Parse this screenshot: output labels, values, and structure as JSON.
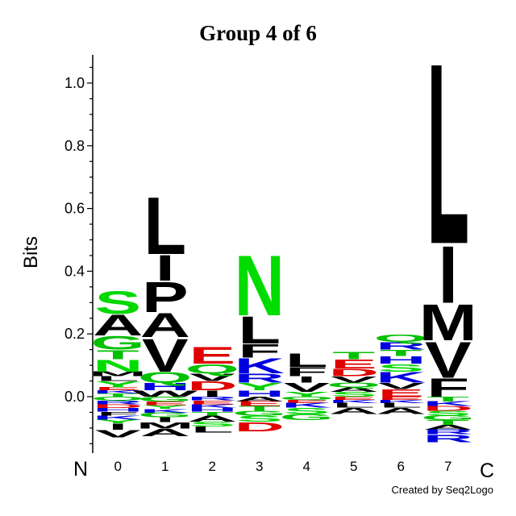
{
  "chart_data": {
    "type": "sequence-logo",
    "title": "Group 4 of 6",
    "ylabel": "Bits",
    "ylim": [
      -0.18,
      1.09
    ],
    "yticks": [
      0.0,
      0.2,
      0.4,
      0.6,
      0.8,
      1.0
    ],
    "ytick_labels": [
      "0.0",
      "0.2",
      "0.4",
      "0.6",
      "0.8",
      "1.0"
    ],
    "n_terminus_label": "N",
    "c_terminus_label": "C",
    "positions": [
      "0",
      "1",
      "2",
      "3",
      "4",
      "5",
      "6",
      "7"
    ],
    "columns": [
      {
        "position": "0",
        "positive": [
          {
            "letter": "T",
            "bits": 0.01
          },
          {
            "letter": "K",
            "bits": 0.01
          },
          {
            "letter": "E",
            "bits": 0.01
          },
          {
            "letter": "Y",
            "bits": 0.02
          },
          {
            "letter": "L",
            "bits": 0.015
          },
          {
            "letter": "M",
            "bits": 0.015
          },
          {
            "letter": "N",
            "bits": 0.04
          },
          {
            "letter": "T",
            "bits": 0.03
          },
          {
            "letter": "G",
            "bits": 0.045
          },
          {
            "letter": "A",
            "bits": 0.07
          },
          {
            "letter": "S",
            "bits": 0.075
          }
        ],
        "negative": [
          {
            "letter": "Q",
            "bits": 0.012
          },
          {
            "letter": "R",
            "bits": 0.012
          },
          {
            "letter": "D",
            "bits": 0.012
          },
          {
            "letter": "H",
            "bits": 0.012
          },
          {
            "letter": "F",
            "bits": 0.012
          },
          {
            "letter": "K",
            "bits": 0.013
          },
          {
            "letter": "Y",
            "bits": 0.012
          },
          {
            "letter": "I",
            "bits": 0.02
          },
          {
            "letter": "V",
            "bits": 0.025
          }
        ]
      },
      {
        "position": "1",
        "positive": [
          {
            "letter": "W",
            "bits": 0.02
          },
          {
            "letter": "H",
            "bits": 0.025
          },
          {
            "letter": "Q",
            "bits": 0.035
          },
          {
            "letter": "V",
            "bits": 0.11
          },
          {
            "letter": "A",
            "bits": 0.08
          },
          {
            "letter": "P",
            "bits": 0.1
          },
          {
            "letter": "I",
            "bits": 0.085
          },
          {
            "letter": "L",
            "bits": 0.19
          }
        ],
        "negative": [
          {
            "letter": "G",
            "bits": 0.015
          },
          {
            "letter": "E",
            "bits": 0.012
          },
          {
            "letter": "Y",
            "bits": 0.012
          },
          {
            "letter": "K",
            "bits": 0.012
          },
          {
            "letter": "G",
            "bits": 0.015
          },
          {
            "letter": "I",
            "bits": 0.015
          },
          {
            "letter": "M",
            "bits": 0.02
          },
          {
            "letter": "A",
            "bits": 0.025
          }
        ]
      },
      {
        "position": "2",
        "positive": [
          {
            "letter": "I",
            "bits": 0.02
          },
          {
            "letter": "D",
            "bits": 0.03
          },
          {
            "letter": "V",
            "bits": 0.025
          },
          {
            "letter": "Q",
            "bits": 0.03
          },
          {
            "letter": "E",
            "bits": 0.055
          }
        ],
        "negative": [
          {
            "letter": "R",
            "bits": 0.012
          },
          {
            "letter": "E",
            "bits": 0.012
          },
          {
            "letter": "K",
            "bits": 0.012
          },
          {
            "letter": "H",
            "bits": 0.012
          },
          {
            "letter": "T",
            "bits": 0.012
          },
          {
            "letter": "A",
            "bits": 0.02
          },
          {
            "letter": "S",
            "bits": 0.015
          },
          {
            "letter": "L",
            "bits": 0.02
          }
        ]
      },
      {
        "position": "3",
        "positive": [
          {
            "letter": "H",
            "bits": 0.02
          },
          {
            "letter": "Y",
            "bits": 0.025
          },
          {
            "letter": "R",
            "bits": 0.03
          },
          {
            "letter": "K",
            "bits": 0.05
          },
          {
            "letter": "F",
            "bits": 0.045
          },
          {
            "letter": "L",
            "bits": 0.09
          },
          {
            "letter": "N",
            "bits": 0.2
          }
        ],
        "negative": [
          {
            "letter": "A",
            "bits": 0.015
          },
          {
            "letter": "E",
            "bits": 0.015
          },
          {
            "letter": "T",
            "bits": 0.015
          },
          {
            "letter": "G",
            "bits": 0.015
          },
          {
            "letter": "S",
            "bits": 0.02
          },
          {
            "letter": "D",
            "bits": 0.03
          }
        ]
      },
      {
        "position": "4",
        "positive": [
          {
            "letter": "Y",
            "bits": 0.015
          },
          {
            "letter": "V",
            "bits": 0.03
          },
          {
            "letter": "I",
            "bits": 0.02
          },
          {
            "letter": "F",
            "bits": 0.03
          },
          {
            "letter": "L",
            "bits": 0.045
          }
        ],
        "negative": [
          {
            "letter": "Q",
            "bits": 0.01
          },
          {
            "letter": "E",
            "bits": 0.01
          },
          {
            "letter": "K",
            "bits": 0.015
          },
          {
            "letter": "S",
            "bits": 0.02
          },
          {
            "letter": "G",
            "bits": 0.02
          }
        ]
      },
      {
        "position": "5",
        "positive": [
          {
            "letter": "S",
            "bits": 0.015
          },
          {
            "letter": "A",
            "bits": 0.015
          },
          {
            "letter": "Q",
            "bits": 0.015
          },
          {
            "letter": "V",
            "bits": 0.02
          },
          {
            "letter": "D",
            "bits": 0.025
          },
          {
            "letter": "E",
            "bits": 0.03
          },
          {
            "letter": "T",
            "bits": 0.025
          }
        ],
        "negative": [
          {
            "letter": "E",
            "bits": 0.01
          },
          {
            "letter": "K",
            "bits": 0.01
          },
          {
            "letter": "L",
            "bits": 0.015
          },
          {
            "letter": "A",
            "bits": 0.02
          }
        ]
      },
      {
        "position": "6",
        "positive": [
          {
            "letter": "E",
            "bits": 0.025
          },
          {
            "letter": "V",
            "bits": 0.02
          },
          {
            "letter": "K",
            "bits": 0.035
          },
          {
            "letter": "S",
            "bits": 0.025
          },
          {
            "letter": "H",
            "bits": 0.025
          },
          {
            "letter": "T",
            "bits": 0.02
          },
          {
            "letter": "R",
            "bits": 0.025
          },
          {
            "letter": "Q",
            "bits": 0.025
          }
        ],
        "negative": [
          {
            "letter": "E",
            "bits": 0.01
          },
          {
            "letter": "K",
            "bits": 0.01
          },
          {
            "letter": "L",
            "bits": 0.015
          },
          {
            "letter": "A",
            "bits": 0.02
          }
        ]
      },
      {
        "position": "7",
        "positive": [
          {
            "letter": "F",
            "bits": 0.06
          },
          {
            "letter": "V",
            "bits": 0.12
          },
          {
            "letter": "M",
            "bits": 0.12
          },
          {
            "letter": "I",
            "bits": 0.19
          },
          {
            "letter": "L",
            "bits": 0.6
          }
        ],
        "negative": [
          {
            "letter": "T",
            "bits": 0.015
          },
          {
            "letter": "K",
            "bits": 0.015
          },
          {
            "letter": "D",
            "bits": 0.015
          },
          {
            "letter": "S",
            "bits": 0.015
          },
          {
            "letter": "G",
            "bits": 0.015
          },
          {
            "letter": "T",
            "bits": 0.015
          },
          {
            "letter": "A",
            "bits": 0.015
          },
          {
            "letter": "R",
            "bits": 0.015
          },
          {
            "letter": "R",
            "bits": 0.025
          }
        ]
      }
    ],
    "letter_colors": {
      "A": "#000000",
      "V": "#000000",
      "L": "#000000",
      "I": "#000000",
      "P": "#000000",
      "F": "#000000",
      "M": "#000000",
      "W": "#000000",
      "G": "#00c000",
      "S": "#00d800",
      "T": "#00c000",
      "Y": "#00d000",
      "Q": "#00c000",
      "N": "#00dc00",
      "C": "#00c000",
      "K": "#0000e0",
      "R": "#0000e0",
      "H": "#0000e0",
      "D": "#e00000",
      "E": "#e00000"
    }
  },
  "credit": "Created by Seq2Logo"
}
